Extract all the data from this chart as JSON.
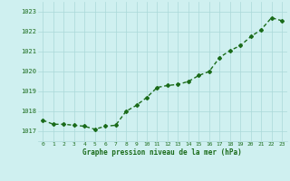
{
  "x": [
    0,
    1,
    2,
    3,
    4,
    5,
    6,
    7,
    8,
    9,
    10,
    11,
    12,
    13,
    14,
    15,
    16,
    17,
    18,
    19,
    20,
    21,
    22,
    23
  ],
  "y": [
    1017.55,
    1017.35,
    1017.35,
    1017.3,
    1017.25,
    1017.1,
    1017.25,
    1017.3,
    1018.0,
    1018.3,
    1018.7,
    1019.2,
    1019.3,
    1019.35,
    1019.5,
    1019.8,
    1020.0,
    1020.7,
    1021.05,
    1021.3,
    1021.75,
    1022.1,
    1022.7,
    1022.55
  ],
  "line_color": "#1a6b1a",
  "marker": "D",
  "marker_size": 2.0,
  "bg_color": "#cff0f0",
  "grid_color": "#aad8d8",
  "xlabel": "Graphe pression niveau de la mer (hPa)",
  "xlabel_color": "#1a6b1a",
  "tick_color": "#1a6b1a",
  "ylim": [
    1016.5,
    1023.5
  ],
  "yticks": [
    1017,
    1018,
    1019,
    1020,
    1021,
    1022,
    1023
  ],
  "xticks": [
    0,
    1,
    2,
    3,
    4,
    5,
    6,
    7,
    8,
    9,
    10,
    11,
    12,
    13,
    14,
    15,
    16,
    17,
    18,
    19,
    20,
    21,
    22,
    23
  ],
  "linewidth": 1.0
}
